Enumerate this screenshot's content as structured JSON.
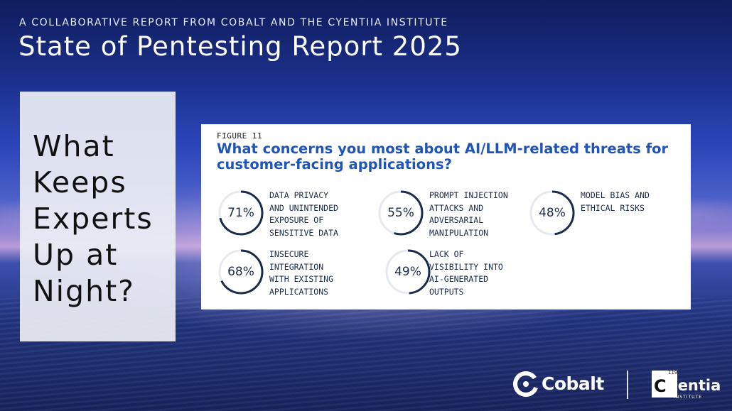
{
  "header": {
    "kicker": "A COLLABORATIVE REPORT FROM COBALT AND THE CYENTIIA INSTITUTE",
    "title": "State of Pentesting Report 2025"
  },
  "side_panel": {
    "text": "What\nKeeps\nExperts\nUp at\nNight?"
  },
  "figure": {
    "label": "FIGURE 11",
    "question": "What concerns you most about AI/LLM-related threats for customer-facing applications?",
    "stats": [
      {
        "percent_label": "71%",
        "value": 71,
        "label": "DATA PRIVACY\nAND UNINTENDED\nEXPOSURE OF\nSENSITIVE DATA"
      },
      {
        "percent_label": "55%",
        "value": 55,
        "label": "PROMPT INJECTION\nATTACKS AND\nADVERSARIAL\nMANIPULATION"
      },
      {
        "percent_label": "48%",
        "value": 48,
        "label": "MODEL BIAS AND\nETHICAL RISKS"
      },
      {
        "percent_label": "68%",
        "value": 68,
        "label": "INSECURE\nINTEGRATION\nWITH EXISTING\nAPPLICATIONS"
      },
      {
        "percent_label": "49%",
        "value": 49,
        "label": "LACK OF\nVISIBILITY INTO\nAI-GENERATED\nOUTPUTS"
      }
    ],
    "ring_color": "#1b2b4a",
    "track_color": "#e6e9f0"
  },
  "logos": {
    "cobalt": "Cobalt",
    "cyentia_mark": "C",
    "cyentia_number": "119",
    "cyentia": "yentia",
    "cyentia_sub": "INSTITUTE"
  }
}
